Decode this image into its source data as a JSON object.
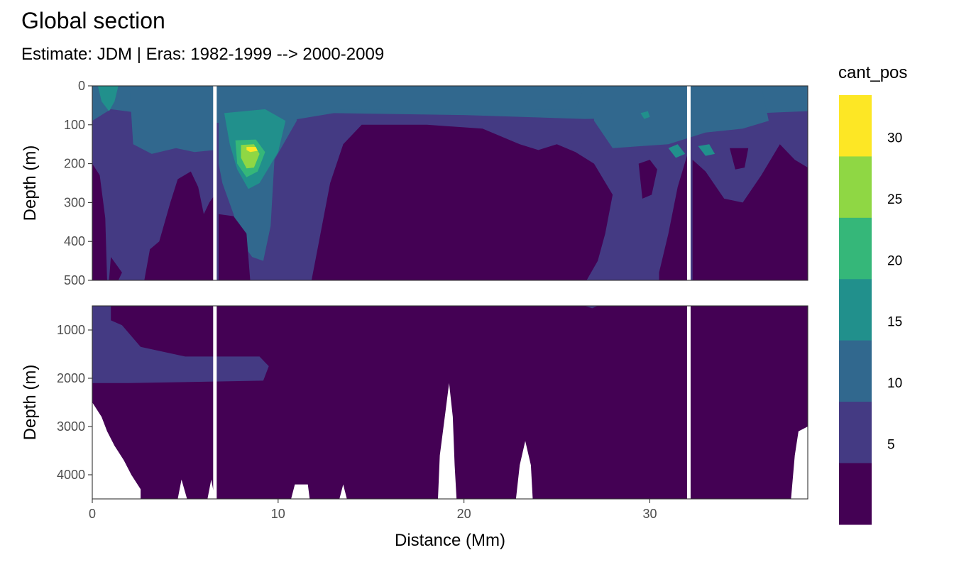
{
  "chart_data": {
    "type": "heatmap",
    "subtype": "filled-contour ocean section",
    "title": "Global section",
    "subtitle": "Estimate: JDM  | Eras: 1982-1999 --> 2000-2009",
    "xlabel": "Distance (Mm)",
    "ylabel": "Depth (m)",
    "xlim": [
      0,
      38.5
    ],
    "x_ticks": [
      0,
      10,
      20,
      30
    ],
    "panels": [
      {
        "name": "upper",
        "ylim": [
          0,
          500
        ],
        "y_reversed": true,
        "y_ticks": [
          0,
          100,
          200,
          300,
          400,
          500
        ]
      },
      {
        "name": "lower",
        "ylim": [
          500,
          4500
        ],
        "y_reversed": true,
        "y_ticks": [
          1000,
          2000,
          3000,
          4000
        ]
      }
    ],
    "section_breaks_Mm": [
      6.6,
      32.1
    ],
    "legend": {
      "title": "cant_pos",
      "breaks": [
        5,
        10,
        15,
        20,
        25,
        30
      ],
      "colors": [
        "#440154",
        "#443A83",
        "#31688E",
        "#21908C",
        "#35B779",
        "#8FD744",
        "#FDE725"
      ],
      "position": "right"
    },
    "color_key": {
      "lt5": "#440154",
      "b5_10": "#443A83",
      "b10_15": "#31688E",
      "b15_20": "#21908C",
      "b20_25": "#35B779",
      "b25_30": "#8FD744",
      "gt30": "#FDE725"
    },
    "fields_upper": [
      {
        "class": "b10_15",
        "points": [
          [
            0,
            0
          ],
          [
            38.5,
            0
          ],
          [
            38.5,
            70
          ],
          [
            0,
            70
          ]
        ]
      },
      {
        "class": "b5_10",
        "points": [
          [
            1.0,
            60
          ],
          [
            2.6,
            70
          ],
          [
            4.5,
            85
          ],
          [
            6.6,
            95
          ],
          [
            10.5,
            90
          ],
          [
            13,
            70
          ],
          [
            20,
            75
          ],
          [
            26.5,
            85
          ],
          [
            30,
            82
          ],
          [
            36,
            70
          ],
          [
            38.5,
            65
          ],
          [
            38.5,
            500
          ],
          [
            0,
            500
          ],
          [
            0,
            90
          ]
        ]
      },
      {
        "class": "b10_15",
        "points": [
          [
            0,
            0
          ],
          [
            2,
            0
          ],
          [
            2.2,
            150
          ],
          [
            3.2,
            175
          ],
          [
            4.5,
            160
          ],
          [
            5.5,
            170
          ],
          [
            6.6,
            165
          ],
          [
            6.6,
            0
          ]
        ]
      },
      {
        "class": "b15_20",
        "points": [
          [
            0.3,
            0
          ],
          [
            1.4,
            0
          ],
          [
            1.2,
            40
          ],
          [
            0.9,
            65
          ],
          [
            0.5,
            40
          ]
        ]
      },
      {
        "class": "b10_15",
        "points": [
          [
            6.8,
            0
          ],
          [
            11,
            0
          ],
          [
            11,
            90
          ],
          [
            9.8,
            190
          ],
          [
            9.6,
            360
          ],
          [
            9.2,
            450
          ],
          [
            8.6,
            440
          ],
          [
            8,
            400
          ],
          [
            7.6,
            330
          ],
          [
            7,
            250
          ],
          [
            6.8,
            200
          ]
        ]
      },
      {
        "class": "b15_20",
        "points": [
          [
            7.1,
            70
          ],
          [
            9.3,
            60
          ],
          [
            10.4,
            90
          ],
          [
            10.0,
            170
          ],
          [
            9.0,
            250
          ],
          [
            8.4,
            265
          ],
          [
            7.8,
            215
          ],
          [
            7.4,
            150
          ]
        ]
      },
      {
        "class": "b20_25",
        "points": [
          [
            7.7,
            140
          ],
          [
            8.8,
            138
          ],
          [
            9.3,
            170
          ],
          [
            8.9,
            220
          ],
          [
            8.3,
            235
          ],
          [
            7.8,
            200
          ]
        ]
      },
      {
        "class": "b25_30",
        "points": [
          [
            8.0,
            152
          ],
          [
            8.7,
            150
          ],
          [
            9.0,
            175
          ],
          [
            8.7,
            210
          ],
          [
            8.3,
            212
          ],
          [
            8.0,
            185
          ]
        ]
      },
      {
        "class": "gt30",
        "points": [
          [
            8.3,
            157
          ],
          [
            8.8,
            157
          ],
          [
            8.9,
            167
          ],
          [
            8.5,
            170
          ],
          [
            8.3,
            165
          ]
        ]
      },
      {
        "class": "b10_15",
        "points": [
          [
            13,
            0
          ],
          [
            26.5,
            0
          ],
          [
            26,
            60
          ],
          [
            20,
            65
          ],
          [
            13,
            60
          ]
        ]
      },
      {
        "class": "b10_15",
        "points": [
          [
            27,
            0
          ],
          [
            36,
            0
          ],
          [
            36.4,
            90
          ],
          [
            35,
            110
          ],
          [
            33,
            120
          ],
          [
            31,
            150
          ],
          [
            28,
            160
          ],
          [
            27,
            90
          ]
        ]
      },
      {
        "class": "b15_20",
        "points": [
          [
            29.5,
            70
          ],
          [
            29.9,
            65
          ],
          [
            30.0,
            80
          ],
          [
            29.7,
            85
          ]
        ]
      },
      {
        "class": "b15_20",
        "points": [
          [
            31.0,
            160
          ],
          [
            31.5,
            150
          ],
          [
            31.9,
            175
          ],
          [
            31.4,
            185
          ]
        ]
      },
      {
        "class": "b15_20",
        "points": [
          [
            32.6,
            155
          ],
          [
            33.2,
            150
          ],
          [
            33.5,
            175
          ],
          [
            33.0,
            180
          ]
        ]
      },
      {
        "class": "lt5",
        "points": [
          [
            0,
            200
          ],
          [
            0.4,
            230
          ],
          [
            0.7,
            340
          ],
          [
            0.8,
            500
          ],
          [
            0,
            500
          ]
        ]
      },
      {
        "class": "lt5",
        "points": [
          [
            1.0,
            440
          ],
          [
            1.6,
            480
          ],
          [
            1.4,
            500
          ],
          [
            0.9,
            500
          ]
        ]
      },
      {
        "class": "lt5",
        "points": [
          [
            3.1,
            420
          ],
          [
            3.6,
            400
          ],
          [
            4.2,
            300
          ],
          [
            4.6,
            240
          ],
          [
            5.3,
            220
          ],
          [
            5.7,
            260
          ],
          [
            6.0,
            330
          ],
          [
            6.3,
            300
          ],
          [
            6.6,
            280
          ],
          [
            6.6,
            500
          ],
          [
            2.8,
            500
          ]
        ]
      },
      {
        "class": "lt5",
        "points": [
          [
            6.8,
            330
          ],
          [
            7.6,
            335
          ],
          [
            8.3,
            380
          ],
          [
            8.5,
            500
          ],
          [
            6.8,
            500
          ]
        ]
      },
      {
        "class": "lt5",
        "points": [
          [
            11.8,
            500
          ],
          [
            12.2,
            400
          ],
          [
            12.8,
            250
          ],
          [
            13.5,
            150
          ],
          [
            14.5,
            100
          ],
          [
            18,
            100
          ],
          [
            21,
            110
          ],
          [
            23,
            150
          ],
          [
            24,
            165
          ],
          [
            25,
            150
          ],
          [
            26,
            170
          ],
          [
            27,
            200
          ],
          [
            28,
            280
          ],
          [
            27.6,
            380
          ],
          [
            27.2,
            450
          ],
          [
            26.6,
            500
          ]
        ]
      },
      {
        "class": "lt5",
        "points": [
          [
            29.4,
            200
          ],
          [
            30.0,
            190
          ],
          [
            30.4,
            215
          ],
          [
            30.1,
            280
          ],
          [
            29.6,
            290
          ]
        ]
      },
      {
        "class": "lt5",
        "points": [
          [
            30.5,
            480
          ],
          [
            31.0,
            380
          ],
          [
            31.5,
            260
          ],
          [
            32.0,
            180
          ],
          [
            32.1,
            175
          ],
          [
            32.1,
            500
          ],
          [
            30.5,
            500
          ]
        ]
      },
      {
        "class": "lt5",
        "points": [
          [
            32.3,
            500
          ],
          [
            32.3,
            190
          ],
          [
            33,
            220
          ],
          [
            34,
            290
          ],
          [
            35,
            300
          ],
          [
            36,
            230
          ],
          [
            37,
            150
          ],
          [
            37.8,
            190
          ],
          [
            38.5,
            210
          ],
          [
            38.5,
            500
          ]
        ]
      },
      {
        "class": "lt5",
        "points": [
          [
            34.3,
            160
          ],
          [
            35.3,
            160
          ],
          [
            35.1,
            210
          ],
          [
            34.6,
            215
          ]
        ]
      }
    ],
    "fields_lower": [
      {
        "class": "b5_10",
        "points": [
          [
            0,
            500
          ],
          [
            1.0,
            500
          ],
          [
            1.0,
            800
          ],
          [
            1.6,
            900
          ],
          [
            2.6,
            1350
          ],
          [
            5,
            1550
          ],
          [
            9,
            1550
          ],
          [
            9.5,
            1750
          ],
          [
            9.2,
            2050
          ],
          [
            5,
            2080
          ],
          [
            2,
            2100
          ],
          [
            0,
            2100
          ]
        ]
      },
      {
        "class": "b5_10",
        "points": [
          [
            26.5,
            500
          ],
          [
            27.2,
            500
          ],
          [
            26.9,
            550
          ]
        ]
      }
    ],
    "no_data_lower": [
      {
        "points": [
          [
            0,
            2500
          ],
          [
            0.5,
            2800
          ],
          [
            0.8,
            3100
          ],
          [
            1.2,
            3400
          ],
          [
            1.7,
            3700
          ],
          [
            2.1,
            4000
          ],
          [
            2.6,
            4300
          ],
          [
            2.6,
            4500
          ],
          [
            0,
            4500
          ]
        ]
      },
      {
        "points": [
          [
            4.6,
            4500
          ],
          [
            4.8,
            4100
          ],
          [
            5.1,
            4500
          ]
        ]
      },
      {
        "points": [
          [
            6.2,
            4500
          ],
          [
            6.4,
            4100
          ],
          [
            6.6,
            4500
          ]
        ]
      },
      {
        "points": [
          [
            18.6,
            4500
          ],
          [
            18.7,
            3600
          ],
          [
            19.0,
            2700
          ],
          [
            19.2,
            2100
          ],
          [
            19.4,
            2800
          ],
          [
            19.5,
            3800
          ],
          [
            19.6,
            4500
          ]
        ]
      },
      {
        "points": [
          [
            22.8,
            4500
          ],
          [
            23.0,
            3800
          ],
          [
            23.3,
            3300
          ],
          [
            23.6,
            3800
          ],
          [
            23.7,
            4500
          ]
        ]
      },
      {
        "points": [
          [
            10.7,
            4500
          ],
          [
            10.9,
            4200
          ],
          [
            11.6,
            4200
          ],
          [
            11.7,
            4500
          ]
        ]
      },
      {
        "points": [
          [
            13.3,
            4500
          ],
          [
            13.5,
            4200
          ],
          [
            13.7,
            4500
          ]
        ]
      },
      {
        "points": [
          [
            37.6,
            4500
          ],
          [
            37.8,
            3600
          ],
          [
            38.0,
            3100
          ],
          [
            38.5,
            3000
          ],
          [
            38.5,
            4500
          ]
        ]
      }
    ]
  }
}
